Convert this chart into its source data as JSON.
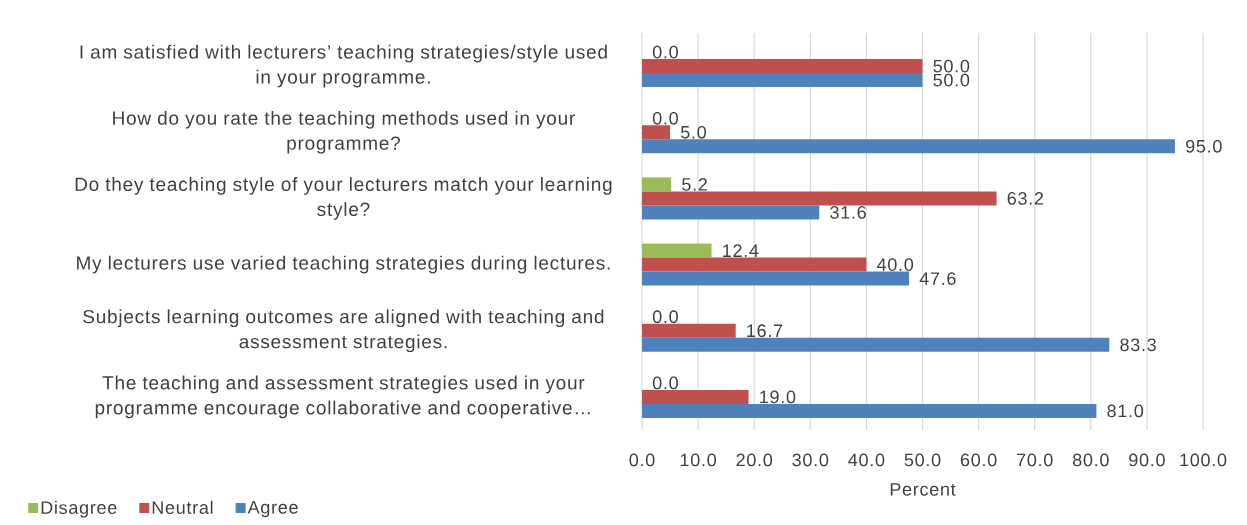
{
  "chart_data": {
    "type": "bar",
    "orientation": "horizontal",
    "categories": [
      "I am satisfied with lecturers’ teaching strategies/style used in your programme.",
      "How do you rate the teaching methods used in your programme?",
      "Do they teaching style of your lecturers match your learning style?",
      "My lecturers use varied teaching strategies during lectures.",
      "Subjects learning outcomes are aligned with teaching and assessment strategies.",
      "The teaching and assessment strategies used in your programme encourage collaborative and cooperative…"
    ],
    "series": [
      {
        "name": "Disagree",
        "color": "#9bbb59",
        "values": [
          0,
          0,
          5.2,
          12.4,
          0,
          0
        ],
        "value_labels": [
          "0.0",
          "0.0",
          "5.2",
          "12.4",
          "0.0",
          "0.0"
        ]
      },
      {
        "name": "Neutral",
        "color": "#c0504d",
        "values": [
          50,
          5,
          63.2,
          40,
          16.7,
          19
        ],
        "value_labels": [
          "50.0",
          "5.0",
          "63.2",
          "40.0",
          "16.7",
          "19.0"
        ]
      },
      {
        "name": "Agree",
        "color": "#4f81bd",
        "values": [
          50,
          95,
          31.6,
          47.6,
          83.3,
          81
        ],
        "value_labels": [
          "50.0",
          "95.0",
          "31.6",
          "47.6",
          "83.3",
          "81.0"
        ]
      }
    ],
    "xlabel": "Percent",
    "xlim": [
      0,
      100
    ],
    "xticks": [
      {
        "value": 0,
        "label": "0.0"
      },
      {
        "value": 10,
        "label": "10.0"
      },
      {
        "value": 20,
        "label": "20.0"
      },
      {
        "value": 30,
        "label": "30.0"
      },
      {
        "value": 40,
        "label": "40.0"
      },
      {
        "value": 50,
        "label": "50.0"
      },
      {
        "value": 60,
        "label": "60.0"
      },
      {
        "value": 70,
        "label": "70.0"
      },
      {
        "value": 80,
        "label": "80.0"
      },
      {
        "value": 90,
        "label": "90.0"
      },
      {
        "value": 100,
        "label": "100.0"
      }
    ],
    "grid": "x",
    "legend": "bottom left"
  }
}
